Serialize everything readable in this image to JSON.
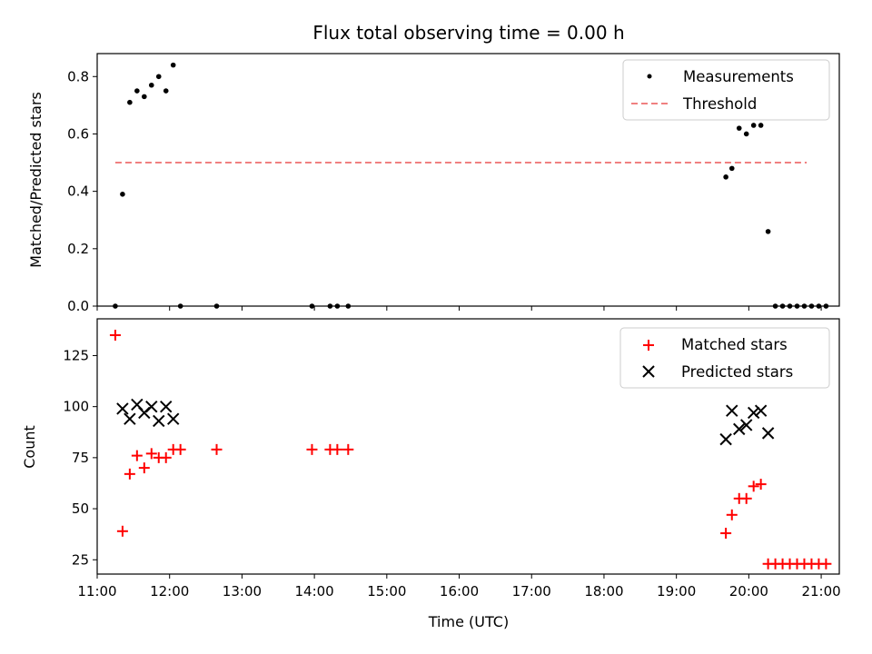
{
  "chart_data": [
    {
      "type": "scatter",
      "title": "Flux total observing time = 0.00 h",
      "xlabel": "",
      "ylabel": "Matched/Predicted stars",
      "xlim": [
        "11:00",
        "21:15"
      ],
      "ylim": [
        0,
        0.88
      ],
      "yticks": [
        "0.0",
        "0.2",
        "0.4",
        "0.6",
        "0.8"
      ],
      "legend_position": "top-right",
      "series": [
        {
          "name": "Measurements",
          "color": "#000000",
          "marker": "dot",
          "x": [
            "11:15",
            "11:21",
            "11:27",
            "11:33",
            "11:39",
            "11:45",
            "11:51",
            "11:57",
            "12:03",
            "12:09",
            "12:39",
            "13:58",
            "14:13",
            "14:19",
            "14:28",
            "19:41",
            "19:46",
            "19:52",
            "19:58",
            "20:04",
            "20:10",
            "20:16",
            "20:22",
            "20:28",
            "20:34",
            "20:40",
            "20:46",
            "20:52",
            "20:58",
            "21:04"
          ],
          "y": [
            0.0,
            0.39,
            0.71,
            0.75,
            0.73,
            0.77,
            0.8,
            0.75,
            0.84,
            0.0,
            0.0,
            0.0,
            0.0,
            0.0,
            0.0,
            0.45,
            0.48,
            0.62,
            0.6,
            0.63,
            0.63,
            0.26,
            0.0,
            0.0,
            0.0,
            0.0,
            0.0,
            0.0,
            0.0,
            0.0
          ]
        },
        {
          "name": "Threshold",
          "color": "#f08080",
          "style": "dashed",
          "x": [
            "11:15",
            "20:48"
          ],
          "y": [
            0.5,
            0.5
          ]
        }
      ]
    },
    {
      "type": "scatter",
      "title": "",
      "xlabel": "Time (UTC)",
      "ylabel": "Count",
      "xlim": [
        "11:00",
        "21:15"
      ],
      "ylim": [
        18,
        143
      ],
      "yticks": [
        "25",
        "50",
        "75",
        "100",
        "125"
      ],
      "xticks": [
        "11:00",
        "12:00",
        "13:00",
        "14:00",
        "15:00",
        "16:00",
        "17:00",
        "18:00",
        "19:00",
        "20:00",
        "21:00"
      ],
      "legend_position": "top-right",
      "series": [
        {
          "name": "Matched stars",
          "color": "#ff0000",
          "marker": "plus",
          "x": [
            "11:15",
            "11:21",
            "11:27",
            "11:33",
            "11:39",
            "11:45",
            "11:51",
            "11:57",
            "12:03",
            "12:09",
            "12:39",
            "13:58",
            "14:13",
            "14:19",
            "14:28",
            "19:41",
            "19:46",
            "19:52",
            "19:58",
            "20:04",
            "20:10",
            "20:16",
            "20:22",
            "20:28",
            "20:34",
            "20:40",
            "20:46",
            "20:52",
            "20:58",
            "21:04"
          ],
          "y": [
            135,
            39,
            67,
            76,
            70,
            77,
            75,
            75,
            79,
            79,
            79,
            79,
            79,
            79,
            79,
            38,
            47,
            55,
            55,
            61,
            62,
            23,
            23,
            23,
            23,
            23,
            23,
            23,
            23,
            23
          ]
        },
        {
          "name": "Predicted stars",
          "color": "#000000",
          "marker": "cross",
          "x": [
            "11:21",
            "11:27",
            "11:33",
            "11:39",
            "11:45",
            "11:51",
            "11:57",
            "12:03",
            "19:41",
            "19:46",
            "19:52",
            "19:58",
            "20:04",
            "20:10",
            "20:16"
          ],
          "y": [
            99,
            94,
            101,
            97,
            100,
            93,
            100,
            94,
            84,
            98,
            89,
            91,
            97,
            98,
            87
          ]
        }
      ]
    }
  ]
}
